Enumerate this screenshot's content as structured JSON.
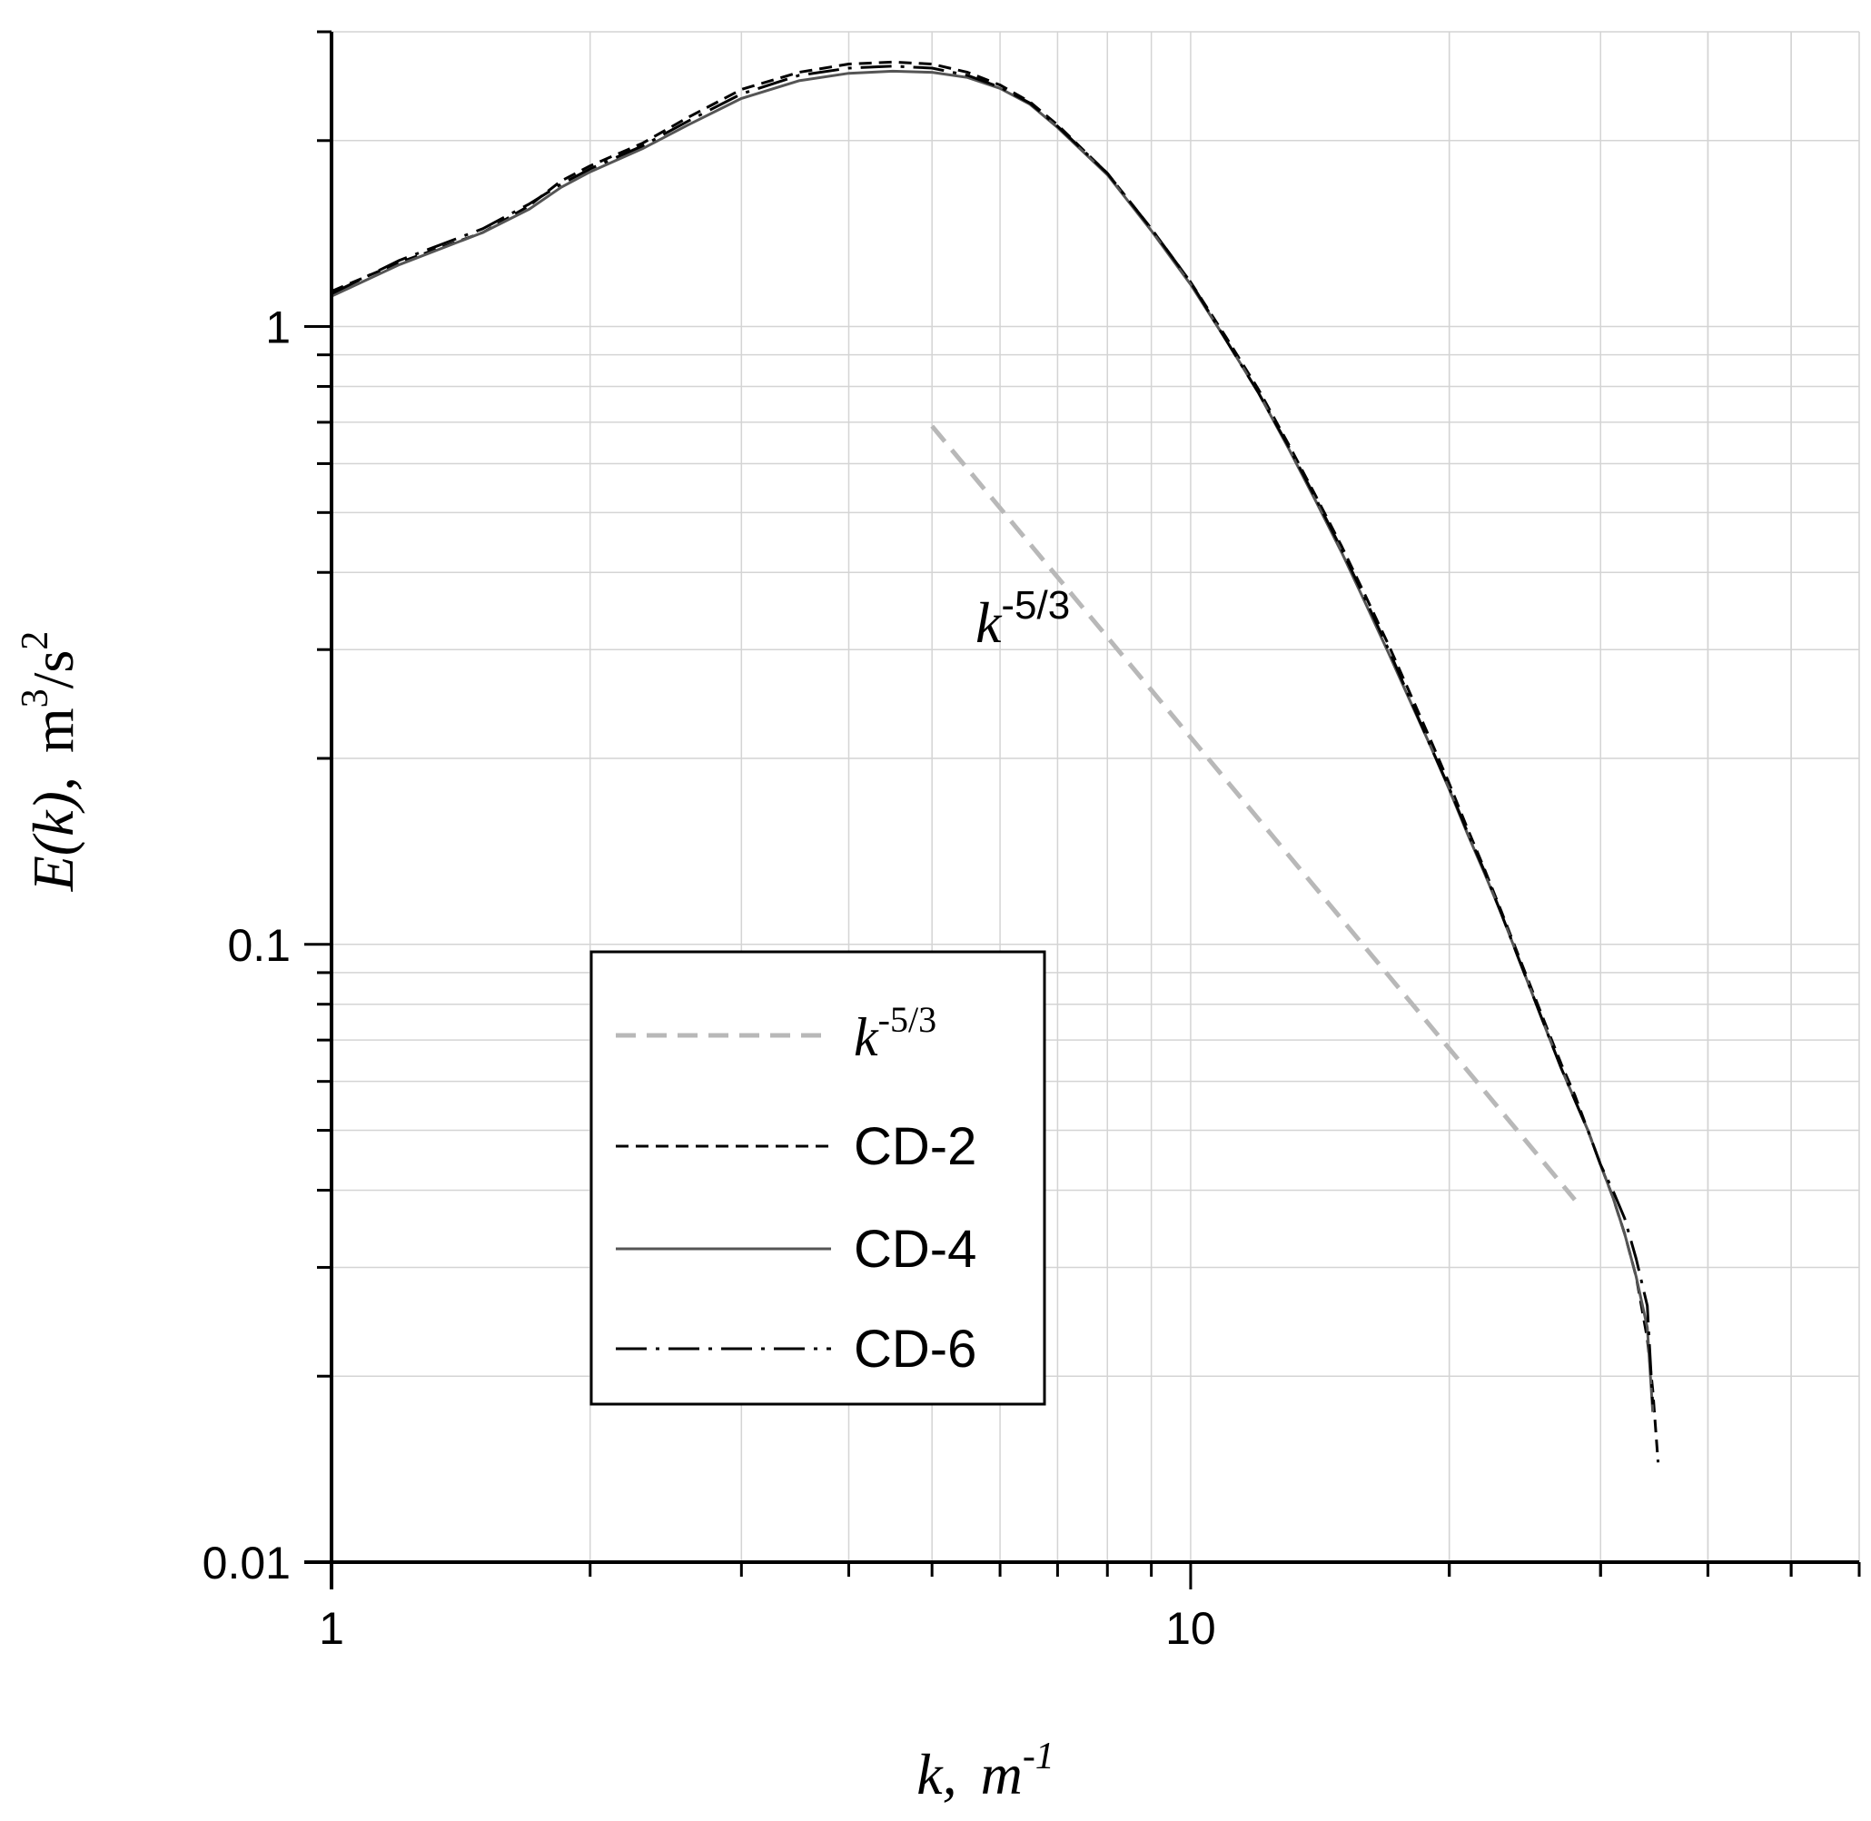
{
  "chart_data": {
    "type": "line",
    "x_scale": "log",
    "y_scale": "log",
    "xlim": [
      1,
      60
    ],
    "ylim": [
      0.01,
      3
    ],
    "grid": true,
    "x_ticks": [
      {
        "value": 1,
        "label": "1"
      },
      {
        "value": 10,
        "label": "10"
      }
    ],
    "y_ticks": [
      {
        "value": 0.01,
        "label": "0.01"
      },
      {
        "value": 0.1,
        "label": "0.1"
      },
      {
        "value": 1,
        "label": "1"
      }
    ],
    "xlabel": {
      "main": "k,",
      "unit": "m",
      "sup": "-1"
    },
    "ylabel": {
      "main": "E(k),",
      "unit": "m",
      "unit_sup": "3",
      "unit_tail": "/s",
      "tail_sup": "2"
    },
    "annotation": {
      "base": "k",
      "sup": "-5/3",
      "x": 6.5,
      "y": 0.33
    },
    "legend_position": "lower-left",
    "series": [
      {
        "name": "k-5/3",
        "legend_base": "k",
        "legend_sup": "-5/3",
        "color": "#b8b8b8",
        "dash": "22,12",
        "width": 5,
        "x": [
          5,
          28
        ],
        "y": [
          0.69,
          0.0386
        ]
      },
      {
        "name": "CD-2",
        "color": "#000000",
        "dash": "14,8",
        "width": 3,
        "x": [
          1,
          1.2,
          1.5,
          1.7,
          1.85,
          2.0,
          2.3,
          2.6,
          3.0,
          3.5,
          4.0,
          4.5,
          5.0,
          5.5,
          6.0,
          6.5,
          7.0,
          8.0,
          9.0,
          10.0,
          11.0,
          12.0,
          13.0,
          14.0,
          15.0,
          16.0,
          17.0,
          18.0,
          19.0,
          20.0,
          21.0,
          22.0,
          23.0,
          24.0,
          25.0,
          26.0,
          27.0,
          28.0,
          29.0,
          30.0,
          31.0,
          32.0,
          33.0,
          34.0,
          34.5,
          35.0
        ],
        "y": [
          1.14,
          1.27,
          1.42,
          1.57,
          1.72,
          1.82,
          1.98,
          2.18,
          2.42,
          2.58,
          2.66,
          2.68,
          2.66,
          2.58,
          2.46,
          2.31,
          2.12,
          1.77,
          1.44,
          1.18,
          0.96,
          0.79,
          0.645,
          0.53,
          0.44,
          0.365,
          0.305,
          0.255,
          0.215,
          0.182,
          0.154,
          0.132,
          0.113,
          0.097,
          0.084,
          0.073,
          0.064,
          0.057,
          0.05,
          0.044,
          0.039,
          0.034,
          0.029,
          0.023,
          0.019,
          0.0145
        ]
      },
      {
        "name": "CD-4",
        "color": "#555555",
        "dash": "",
        "width": 3,
        "x": [
          1,
          1.2,
          1.5,
          1.7,
          1.85,
          2.0,
          2.3,
          2.6,
          3.0,
          3.5,
          4.0,
          4.5,
          5.0,
          5.5,
          6.0,
          6.5,
          7.0,
          8.0,
          9.0,
          10.0,
          11.0,
          12.0,
          13.0,
          14.0,
          15.0,
          16.0,
          17.0,
          18.0,
          19.0,
          20.0,
          21.0,
          22.0,
          23.0,
          24.0,
          25.0,
          26.0,
          27.0,
          28.0,
          29.0,
          30.0,
          31.0,
          32.0,
          33.0,
          34.0,
          34.5
        ],
        "y": [
          1.12,
          1.26,
          1.42,
          1.55,
          1.68,
          1.78,
          1.94,
          2.12,
          2.34,
          2.5,
          2.57,
          2.59,
          2.58,
          2.53,
          2.43,
          2.29,
          2.1,
          1.76,
          1.43,
          1.17,
          0.95,
          0.78,
          0.635,
          0.52,
          0.43,
          0.355,
          0.296,
          0.248,
          0.21,
          0.178,
          0.151,
          0.13,
          0.112,
          0.096,
          0.083,
          0.072,
          0.063,
          0.056,
          0.05,
          0.044,
          0.039,
          0.034,
          0.029,
          0.024,
          0.0175
        ]
      },
      {
        "name": "CD-6",
        "color": "#000000",
        "dash": "34,10,4,10",
        "width": 3,
        "x": [
          1,
          1.2,
          1.5,
          1.7,
          1.85,
          2.0,
          2.3,
          2.6,
          3.0,
          3.5,
          4.0,
          4.5,
          5.0,
          5.5,
          6.0,
          6.5,
          7.0,
          8.0,
          9.0,
          10.0,
          11.0,
          12.0,
          13.0,
          14.0,
          15.0,
          16.0,
          17.0,
          18.0,
          19.0,
          20.0,
          21.0,
          22.0,
          23.0,
          24.0,
          25.0,
          26.0,
          27.0,
          28.0,
          29.0,
          30.0,
          31.0,
          32.0,
          33.0,
          34.0,
          34.5
        ],
        "y": [
          1.13,
          1.28,
          1.44,
          1.58,
          1.7,
          1.8,
          1.96,
          2.15,
          2.38,
          2.55,
          2.62,
          2.64,
          2.62,
          2.55,
          2.44,
          2.3,
          2.11,
          1.77,
          1.44,
          1.18,
          0.95,
          0.78,
          0.64,
          0.525,
          0.435,
          0.36,
          0.3,
          0.25,
          0.21,
          0.179,
          0.152,
          0.131,
          0.112,
          0.096,
          0.083,
          0.072,
          0.063,
          0.056,
          0.05,
          0.044,
          0.04,
          0.036,
          0.031,
          0.026,
          0.018
        ]
      }
    ]
  }
}
